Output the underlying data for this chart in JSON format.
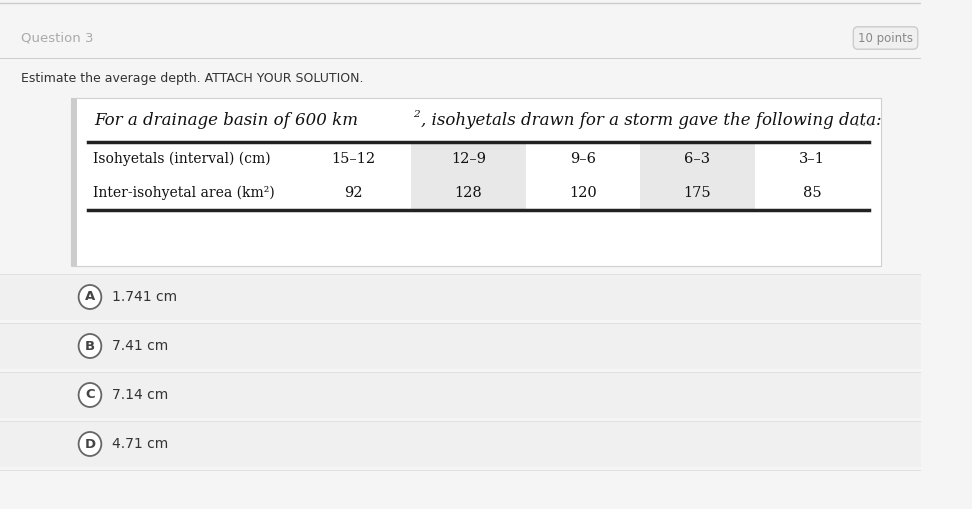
{
  "overall_bg": "#f5f5f5",
  "top_line_color": "#cccccc",
  "page_bg": "#f5f5f5",
  "question_label": "Question 3",
  "details_label": "10 points",
  "instruction": "Estimate the average depth. ATTACH YOUR SOLUTION.",
  "problem_statement_1": "For a drainage basin of 600 km",
  "problem_statement_2": ", isohyetals drawn for a storm gave the following data:",
  "table_row1_label": "Isohyetals (interval) (cm)",
  "table_row2_label": "Inter-isohyetal area (km²)",
  "table_cols": [
    "15–12",
    "12–9",
    "9–6",
    "6–3",
    "3–1"
  ],
  "table_row2_vals": [
    "92",
    "128",
    "120",
    "175",
    "85"
  ],
  "col_shading": [
    "#ffffff",
    "#e8e8e8",
    "#ffffff",
    "#e8e8e8",
    "#ffffff"
  ],
  "options": [
    {
      "letter": "A",
      "text": "1.741 cm"
    },
    {
      "letter": "B",
      "text": "7.41 cm"
    },
    {
      "letter": "C",
      "text": "7.14 cm"
    },
    {
      "letter": "D",
      "text": "4.71 cm"
    }
  ],
  "ellipsis": "…",
  "panel_bg": "#ffffff",
  "panel_border_color": "#d0d0d0",
  "left_accent_color": "#cccccc",
  "option_bg": "#f0f0f0",
  "option_sep_color": "#e0e0e0",
  "table_line_color": "#222222",
  "text_color": "#333333",
  "label_color": "#888888"
}
